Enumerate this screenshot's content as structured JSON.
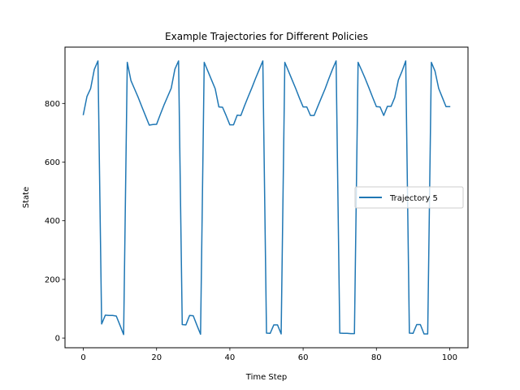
{
  "chart_data": {
    "type": "line",
    "title": "Example Trajectories for Different Policies",
    "xlabel": "Time Step",
    "ylabel": "State",
    "xlim": [
      -5,
      105
    ],
    "ylim": [
      -33,
      992
    ],
    "xticks": [
      0,
      20,
      40,
      60,
      80,
      100
    ],
    "yticks": [
      0,
      200,
      400,
      600,
      800
    ],
    "grid": false,
    "legend_position": "center-right",
    "series": [
      {
        "name": "Trajectory 5",
        "color": "#1f77b4",
        "x": [
          0,
          1,
          2,
          3,
          4,
          5,
          6,
          7,
          8,
          9,
          10,
          11,
          12,
          13,
          14,
          15,
          16,
          17,
          18,
          19,
          20,
          21,
          22,
          23,
          24,
          25,
          26,
          27,
          28,
          29,
          30,
          31,
          32,
          33,
          34,
          35,
          36,
          37,
          38,
          39,
          40,
          41,
          42,
          43,
          44,
          45,
          46,
          47,
          48,
          49,
          50,
          51,
          52,
          53,
          54,
          55,
          56,
          57,
          58,
          59,
          60,
          61,
          62,
          63,
          64,
          65,
          66,
          67,
          68,
          69,
          70,
          71,
          72,
          73,
          74,
          75,
          76,
          77,
          78,
          79,
          80,
          81,
          82,
          83,
          84,
          85,
          86,
          87,
          88,
          89,
          90,
          91,
          92,
          93,
          94,
          95,
          96,
          97,
          98,
          99,
          100
        ],
        "y": [
          762,
          824,
          851,
          916,
          945,
          48,
          78,
          77,
          77,
          75,
          44,
          12,
          940,
          878,
          849,
          820,
          788,
          757,
          726,
          728,
          729,
          762,
          794,
          823,
          852,
          917,
          945,
          46,
          45,
          77,
          76,
          44,
          13,
          940,
          910,
          880,
          850,
          788,
          787,
          758,
          727,
          727,
          760,
          759,
          792,
          823,
          853,
          885,
          915,
          945,
          17,
          16,
          45,
          45,
          14,
          940,
          910,
          880,
          850,
          818,
          788,
          788,
          759,
          759,
          790,
          820,
          850,
          884,
          916,
          945,
          17,
          16,
          16,
          15,
          15,
          940,
          912,
          883,
          852,
          820,
          789,
          788,
          759,
          790,
          790,
          820,
          880,
          910,
          945,
          17,
          16,
          46,
          46,
          14,
          14,
          940,
          910,
          851,
          820,
          789,
          789
        ]
      }
    ]
  }
}
